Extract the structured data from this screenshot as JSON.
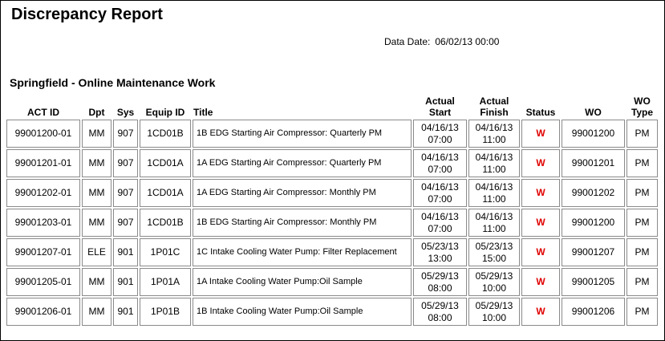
{
  "header": {
    "title": "Discrepancy Report",
    "data_date_label": "Data Date:",
    "data_date": "06/02/13 00:00"
  },
  "section_title": "Springfield - Online Maintenance Work",
  "table": {
    "columns": [
      "ACT ID",
      "Dpt",
      "Sys",
      "Equip ID",
      "Title",
      "Actual Start",
      "Actual Finish",
      "Status",
      "WO",
      "WO Type"
    ],
    "rows": [
      [
        "99001200-01",
        "MM",
        "907",
        "1CD01B",
        "1B EDG Starting Air Compressor: Quarterly PM",
        [
          "04/16/13",
          "07:00"
        ],
        [
          "04/16/13",
          "11:00"
        ],
        "W",
        "99001200",
        "PM"
      ],
      [
        "99001201-01",
        "MM",
        "907",
        "1CD01A",
        "1A EDG Starting Air Compressor: Quarterly PM",
        [
          "04/16/13",
          "07:00"
        ],
        [
          "04/16/13",
          "11:00"
        ],
        "W",
        "99001201",
        "PM"
      ],
      [
        "99001202-01",
        "MM",
        "907",
        "1CD01A",
        "1A EDG Starting Air Compressor: Monthly PM",
        [
          "04/16/13",
          "07:00"
        ],
        [
          "04/16/13",
          "11:00"
        ],
        "W",
        "99001202",
        "PM"
      ],
      [
        "99001203-01",
        "MM",
        "907",
        "1CD01B",
        "1B EDG Starting Air Compressor: Monthly PM",
        [
          "04/16/13",
          "07:00"
        ],
        [
          "04/16/13",
          "11:00"
        ],
        "W",
        "99001200",
        "PM"
      ],
      [
        "99001207-01",
        "ELE",
        "901",
        "1P01C",
        "1C Intake Cooling Water Pump: Filter Replacement",
        [
          "05/23/13",
          "13:00"
        ],
        [
          "05/23/13",
          "15:00"
        ],
        "W",
        "99001207",
        "PM"
      ],
      [
        "99001205-01",
        "MM",
        "901",
        "1P01A",
        "1A Intake Cooling Water Pump:Oil Sample",
        [
          "05/29/13",
          "08:00"
        ],
        [
          "05/29/13",
          "10:00"
        ],
        "W",
        "99001205",
        "PM"
      ],
      [
        "99001206-01",
        "MM",
        "901",
        "1P01B",
        "1B Intake Cooling Water Pump:Oil Sample",
        [
          "05/29/13",
          "08:00"
        ],
        [
          "05/29/13",
          "10:00"
        ],
        "W",
        "99001206",
        "PM"
      ]
    ]
  }
}
